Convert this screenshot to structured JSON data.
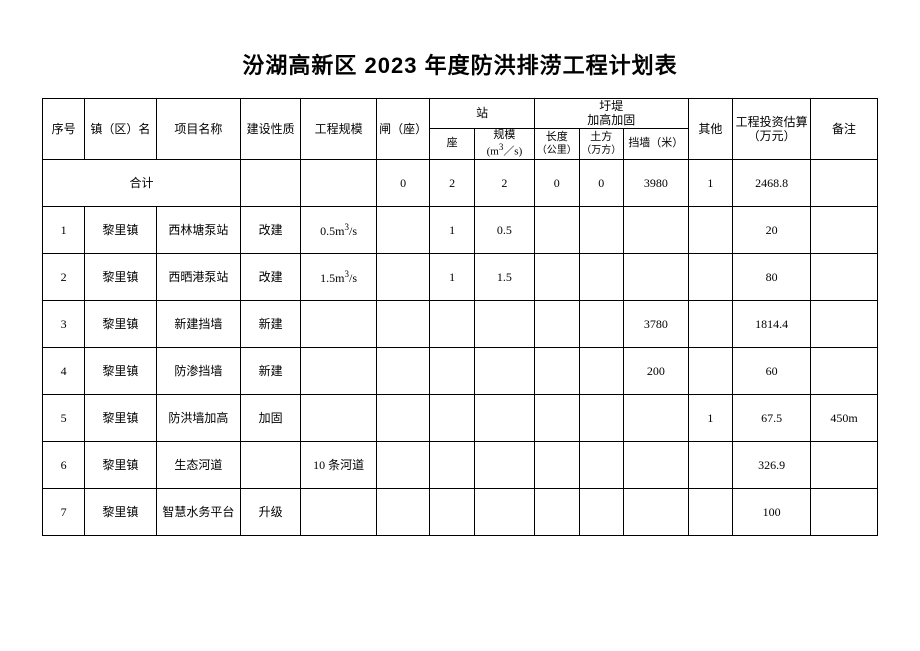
{
  "title": "汾湖高新区 2023 年度防洪排涝工程计划表",
  "headers": {
    "idx": "序号",
    "town": "镇（区）名",
    "project": "项目名称",
    "nature": "建设性质",
    "scale": "工程规模",
    "gate": "闸（座）",
    "station_group": "站",
    "station_count": "座",
    "station_scale_html": "规模<br>(m<span class=\"sup\">3</span>／s)",
    "dike_group": "圩堤<br>加高加固",
    "length_html": "长度<br><span class=\"small\">（公里）</span>",
    "earth_html": "土方<br><span class=\"small\">（万方）</span>",
    "wall": "挡墙（米）",
    "other": "其他",
    "cost": "工程投资估算<br>（万元）",
    "note": "备注"
  },
  "total_label": "合计",
  "totals": {
    "gate": "0",
    "stn_count": "2",
    "stn_scale": "2",
    "length": "0",
    "earth": "0",
    "wall": "3980",
    "other": "1",
    "cost": "2468.8"
  },
  "rows": [
    {
      "idx": "1",
      "town": "黎里镇",
      "project": "西林塘泵站",
      "nature": "改建",
      "scale_html": "0.5m<span class=\"sup\">3</span>/s",
      "gate": "",
      "stn_count": "1",
      "stn_scale": "0.5",
      "length": "",
      "earth": "",
      "wall": "",
      "other": "",
      "cost": "20",
      "note": ""
    },
    {
      "idx": "2",
      "town": "黎里镇",
      "project": "西晒港泵站",
      "nature": "改建",
      "scale_html": "1.5m<span class=\"sup\">3</span>/s",
      "gate": "",
      "stn_count": "1",
      "stn_scale": "1.5",
      "length": "",
      "earth": "",
      "wall": "",
      "other": "",
      "cost": "80",
      "note": ""
    },
    {
      "idx": "3",
      "town": "黎里镇",
      "project": "新建挡墙",
      "nature": "新建",
      "scale_html": "",
      "gate": "",
      "stn_count": "",
      "stn_scale": "",
      "length": "",
      "earth": "",
      "wall": "3780",
      "other": "",
      "cost": "1814.4",
      "note": ""
    },
    {
      "idx": "4",
      "town": "黎里镇",
      "project": "防渗挡墙",
      "nature": "新建",
      "scale_html": "",
      "gate": "",
      "stn_count": "",
      "stn_scale": "",
      "length": "",
      "earth": "",
      "wall": "200",
      "other": "",
      "cost": "60",
      "note": ""
    },
    {
      "idx": "5",
      "town": "黎里镇",
      "project": "防洪墙加高",
      "nature": "加固",
      "scale_html": "",
      "gate": "",
      "stn_count": "",
      "stn_scale": "",
      "length": "",
      "earth": "",
      "wall": "",
      "other": "1",
      "cost": "67.5",
      "note": "450m"
    },
    {
      "idx": "6",
      "town": "黎里镇",
      "project": "生态河道",
      "nature": "",
      "scale_html": "10 条河道",
      "gate": "",
      "stn_count": "",
      "stn_scale": "",
      "length": "",
      "earth": "",
      "wall": "",
      "other": "",
      "cost": "326.9",
      "note": ""
    },
    {
      "idx": "7",
      "town": "黎里镇",
      "project": "智慧水务平台",
      "nature": "升级",
      "scale_html": "",
      "gate": "",
      "stn_count": "",
      "stn_scale": "",
      "length": "",
      "earth": "",
      "wall": "",
      "other": "",
      "cost": "100",
      "note": ""
    }
  ],
  "colors": {
    "border": "#000000",
    "background": "#ffffff",
    "text": "#000000"
  },
  "font": {
    "title_size_pt": 16,
    "body_size_pt": 9
  }
}
